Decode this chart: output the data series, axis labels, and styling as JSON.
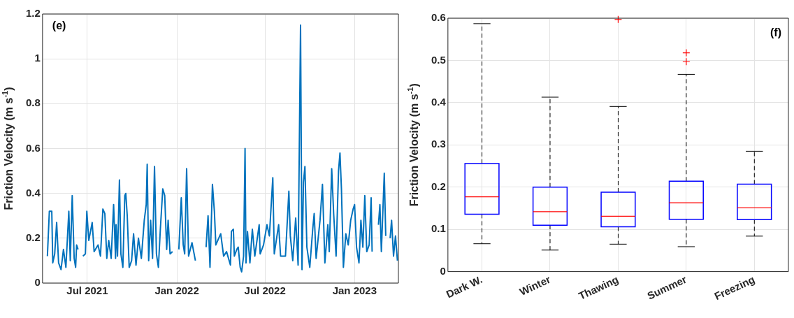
{
  "chart_data": [
    {
      "type": "line",
      "ylabel": "Friction Velocity (m s$^{-1}$)",
      "annotations": [
        "(e)"
      ],
      "grid": true,
      "xlim": [
        "2021-03-31",
        "2023-04-01"
      ],
      "xticks": [
        {
          "value": "2021-07-01",
          "label": "Jul 2021"
        },
        {
          "value": "2022-01-01",
          "label": "Jan 2022"
        },
        {
          "value": "2022-07-01",
          "label": "Jul 2022"
        },
        {
          "value": "2023-01-01",
          "label": "Jan 2023"
        }
      ],
      "ylim": [
        0,
        1.2
      ],
      "yticks": [
        0,
        0.2,
        0.4,
        0.6,
        0.8,
        1,
        1.2
      ],
      "x": [
        "2021-04-10",
        "2021-04-14",
        "2021-04-19",
        "2021-04-21",
        "2021-04-25",
        "2021-04-29",
        "2021-05-03",
        "2021-05-08",
        "2021-05-13",
        "2021-05-18",
        "2021-05-24",
        "2021-05-27",
        "2021-05-31",
        "2021-06-04",
        "2021-06-07",
        "2021-06-09",
        "2021-06-12",
        "2021-06-17",
        "2021-06-22",
        "2021-06-27",
        "2021-06-30",
        "2021-07-04",
        "2021-07-11",
        "2021-07-15",
        "2021-07-23",
        "2021-07-28",
        "2021-08-02",
        "2021-08-06",
        "2021-08-10",
        "2021-08-14",
        "2021-08-19",
        "2021-08-24",
        "2021-08-28",
        "2021-08-29",
        "2021-09-01",
        "2021-09-05",
        "2021-09-08",
        "2021-09-12",
        "2021-09-16",
        "2021-09-18",
        "2021-09-21",
        "2021-09-25",
        "2021-09-30",
        "2021-10-04",
        "2021-10-09",
        "2021-10-14",
        "2021-10-20",
        "2021-10-26",
        "2021-10-30",
        "2021-11-01",
        "2021-11-04",
        "2021-11-08",
        "2021-11-12",
        "2021-11-16",
        "2021-11-20",
        "2021-11-24",
        "2021-11-28",
        "2021-12-03",
        "2021-12-07",
        "2021-12-11",
        "2021-12-14",
        "2021-12-18",
        "2021-12-23",
        "2021-12-30",
        "2022-01-05",
        "2022-01-10",
        "2022-01-14",
        "2022-01-17",
        "2022-01-21",
        "2022-01-25",
        "2022-02-01",
        "2022-02-08",
        "2022-02-20",
        "2022-03-02",
        "2022-03-06",
        "2022-03-10",
        "2022-03-15",
        "2022-03-19",
        "2022-03-22",
        "2022-04-01",
        "2022-04-07",
        "2022-04-13",
        "2022-04-21",
        "2022-04-23",
        "2022-04-27",
        "2022-04-29",
        "2022-05-04",
        "2022-05-07",
        "2022-05-11",
        "2022-05-14",
        "2022-05-18",
        "2022-05-21",
        "2022-05-23",
        "2022-05-26",
        "2022-05-31",
        "2022-06-05",
        "2022-06-10",
        "2022-06-19",
        "2022-06-21",
        "2022-06-28",
        "2022-07-05",
        "2022-07-10",
        "2022-07-17",
        "2022-07-20",
        "2022-07-29",
        "2022-08-02",
        "2022-08-12",
        "2022-08-19",
        "2022-08-22",
        "2022-08-27",
        "2022-09-02",
        "2022-09-07",
        "2022-09-12",
        "2022-09-15",
        "2022-09-18",
        "2022-09-21",
        "2022-09-25",
        "2022-10-01",
        "2022-10-07",
        "2022-10-10",
        "2022-10-14",
        "2022-10-22",
        "2022-10-27",
        "2022-11-01",
        "2022-11-07",
        "2022-11-10",
        "2022-11-15",
        "2022-11-19",
        "2022-11-24",
        "2022-11-29",
        "2022-12-02",
        "2022-12-05",
        "2022-12-09",
        "2022-12-14",
        "2022-12-19",
        "2022-12-24",
        "2022-12-29",
        "2023-01-01",
        "2023-01-05",
        "2023-01-10",
        "2023-01-14",
        "2023-01-18",
        "2023-01-22",
        "2023-01-26",
        "2023-01-31",
        "2023-02-04",
        "2023-02-06",
        "2023-02-10",
        "2023-02-19",
        "2023-02-22",
        "2023-02-25",
        "2023-03-03",
        "2023-03-06",
        "2023-03-09",
        "2023-03-15",
        "2023-03-18",
        "2023-03-22",
        "2023-03-26",
        "2023-03-30"
      ],
      "series": [
        {
          "color": "#0072bd",
          "values": [
            0.12,
            0.32,
            0.32,
            0.09,
            0.13,
            0.27,
            0.09,
            0.06,
            0.15,
            0.07,
            0.32,
            0.1,
            0.39,
            0.11,
            0.07,
            0.17,
            0.15,
            null,
            0.12,
            0.13,
            0.32,
            0.19,
            0.27,
            0.14,
            0.17,
            0.12,
            0.33,
            0.31,
            0.11,
            0.19,
            0.11,
            0.35,
            0.11,
            0.26,
            0.12,
            0.46,
            0.13,
            0.07,
            0.39,
            0.4,
            0.3,
            0.07,
            0.1,
            0.22,
            0.08,
            0.2,
            0.11,
            0.28,
            0.35,
            0.53,
            0.1,
            0.28,
            0.11,
            0.52,
            0.13,
            0.07,
            0.24,
            0.42,
            0.39,
            0.15,
            0.28,
            0.13,
            0.14,
            null,
            0.15,
            0.38,
            0.17,
            0.13,
            0.51,
            0.12,
            0.18,
            0.1,
            null,
            0.16,
            0.3,
            0.07,
            0.44,
            0.32,
            0.17,
            0.22,
            0.12,
            0.14,
            0.08,
            0.23,
            0.24,
            0.12,
            0.15,
            0.16,
            0.07,
            0.05,
            0.12,
            0.6,
            0.09,
            0.23,
            0.09,
            0.24,
            0.12,
            0.26,
            0.13,
            0.17,
            0.26,
            0.21,
            0.47,
            0.13,
            0.26,
            0.12,
            0.12,
            0.41,
            0.21,
            0.1,
            0.29,
            0.08,
            1.15,
            0.06,
            0.45,
            0.52,
            0.16,
            0.07,
            0.24,
            0.31,
            0.11,
            0.28,
            0.44,
            0.09,
            0.26,
            0.14,
            0.51,
            0.31,
            0.12,
            0.5,
            0.58,
            0.42,
            0.07,
            0.22,
            0.17,
            0.28,
            0.33,
            0.35,
            0.16,
            0.09,
            0.28,
            0.16,
            0.39,
            0.14,
            0.17,
            0.38,
            0.14,
            null,
            0.26,
            0.35,
            0.14,
            0.49,
            0.21,
            null,
            0.2,
            0.28,
            0.12,
            0.21,
            0.1
          ]
        }
      ]
    },
    {
      "type": "box",
      "ylabel": "Friction Velocity (m s$^{-1}$)",
      "annotations": [
        "(f)"
      ],
      "grid": true,
      "color": "#0000ff",
      "categories": [
        "Dark W.",
        "Winter",
        "Thawing",
        "Summer",
        "Freezing"
      ],
      "ylim": [
        0,
        0.6
      ],
      "yticks": [
        0,
        0.1,
        0.2,
        0.3,
        0.4,
        0.5,
        0.6
      ],
      "boxes": [
        {
          "low": 0.066,
          "q1": 0.136,
          "median": 0.177,
          "q3": 0.256,
          "high": 0.587
        },
        {
          "low": 0.051,
          "q1": 0.11,
          "median": 0.142,
          "q3": 0.2,
          "high": 0.413
        },
        {
          "low": 0.065,
          "q1": 0.106,
          "median": 0.131,
          "q3": 0.188,
          "high": 0.391,
          "outliers": [
            0.597
          ]
        },
        {
          "low": 0.059,
          "q1": 0.124,
          "median": 0.163,
          "q3": 0.214,
          "high": 0.467,
          "outliers": [
            0.497,
            0.518
          ]
        },
        {
          "low": 0.084,
          "q1": 0.123,
          "median": 0.151,
          "q3": 0.207,
          "high": 0.285
        }
      ]
    }
  ]
}
